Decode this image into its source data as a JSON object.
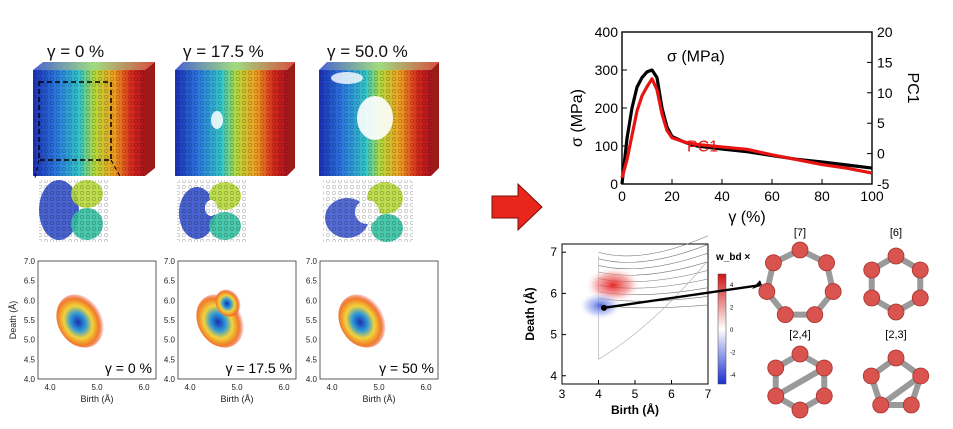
{
  "strain_panels": [
    {
      "title": "γ = 0 %",
      "pd_label": "γ = 0 %"
    },
    {
      "title": "γ = 17.5 %",
      "pd_label": "γ = 17.5 %"
    },
    {
      "title": "γ = 50.0 %",
      "pd_label": "γ = 50 %"
    }
  ],
  "pd_axes": {
    "ylabel": "Death (Å)",
    "xlabel": "Birth (Å)",
    "yticks": [
      "7.0",
      "6.5",
      "6.0",
      "5.5",
      "5.0",
      "4.5",
      "4.0"
    ],
    "xticks": [
      "4.0",
      "5.0",
      "6.0"
    ]
  },
  "stress_chart": {
    "series_labels": {
      "stress": "σ (MPa)",
      "pc1": "PC1"
    },
    "xlabel": "γ (%)",
    "ylabel_left": "σ (MPa)",
    "ylabel_right": "PC1",
    "xticks": [
      "0",
      "20",
      "40",
      "60",
      "80",
      "100"
    ],
    "yticks_left": [
      "0",
      "100",
      "200",
      "300",
      "400"
    ],
    "yticks_right": [
      "-5",
      "0",
      "5",
      "10",
      "15",
      "20"
    ]
  },
  "chart_data": {
    "type": "line",
    "xlabel": "γ (%)",
    "ylabel": "σ (MPa)",
    "ylabel_right": "PC1",
    "xlim": [
      0,
      100
    ],
    "ylim": [
      0,
      400
    ],
    "ylim_right": [
      -5,
      20
    ],
    "series": [
      {
        "name": "σ (MPa)",
        "color": "#000000",
        "x": [
          0,
          2,
          4,
          6,
          8,
          10,
          12,
          14,
          16,
          18,
          20,
          25,
          30,
          40,
          50,
          60,
          70,
          80,
          90,
          100
        ],
        "y": [
          0,
          120,
          200,
          255,
          280,
          295,
          300,
          280,
          200,
          150,
          125,
          110,
          100,
          92,
          85,
          75,
          65,
          58,
          50,
          42
        ]
      },
      {
        "name": "PC1",
        "color": "#e81414",
        "x": [
          0,
          2,
          4,
          6,
          8,
          10,
          12,
          14,
          16,
          18,
          20,
          25,
          30,
          40,
          50,
          60,
          70,
          80,
          90,
          100
        ],
        "y": [
          -4,
          -1,
          3,
          7,
          9.5,
          11,
          12.3,
          10.5,
          6.5,
          3.8,
          2.6,
          1.9,
          1.5,
          1.1,
          0.7,
          -0.2,
          -1,
          -1.8,
          -2.4,
          -3.2
        ]
      }
    ]
  },
  "heatmap_pd": {
    "ylabel": "Death (Å)",
    "xlabel": "Birth (Å)",
    "xticks": [
      "3",
      "4",
      "5",
      "6",
      "7"
    ],
    "yticks": [
      "7",
      "6",
      "5",
      "4"
    ],
    "colorbar_title": "w_bd ×",
    "colorbar_ticks": [
      "4",
      "2",
      "0",
      "-2",
      "-4"
    ]
  },
  "ring_labels": [
    "[7]",
    "[6]",
    "[2,4]",
    "[2,3]"
  ],
  "colors": {
    "arrow": "#e8261c",
    "ring_node": "#d9534f",
    "ring_bond": "#9a9a9a"
  }
}
